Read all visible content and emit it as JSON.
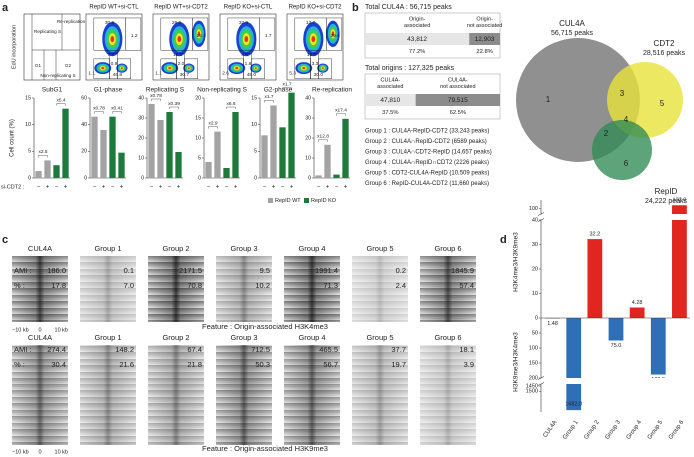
{
  "panel_a": {
    "label": "a",
    "schematic": {
      "y_label": "EdU incorporation",
      "regions": [
        "Replicating S",
        "Re-replication",
        "G1",
        "G2",
        "Non-replicating S"
      ]
    },
    "flow_plots": [
      {
        "title": "RepID WT+si-CTL",
        "gates": [
          "30.9",
          "1.2",
          "7.3",
          "0.9",
          "46.8",
          "1.1"
        ]
      },
      {
        "title": "RepID WT+si-CDT2",
        "gates": [
          "29.9",
          "15.3",
          "12.1",
          "2.0",
          "30.7",
          "1.1"
        ]
      },
      {
        "title": "RepID KO+si-CTL",
        "gates": [
          "32.9",
          "1.7",
          "9.8",
          "1.8",
          "48.0",
          "2.6"
        ]
      },
      {
        "title": "RepID KO+si-CDT2",
        "gates": [
          "12.7",
          "29.6",
          "16.9",
          "3.3",
          "30.0",
          "5.3"
        ]
      }
    ],
    "x_label": "si-CDT2 :",
    "legend": [
      {
        "name": "RepID WT",
        "color": "#a3a3a3"
      },
      {
        "name": "RepID KO",
        "color": "#1d7a3b"
      }
    ]
  },
  "chart_data": [
    {
      "type": "bar",
      "title": "SubG1",
      "y_label": "Cell count (%)",
      "categories": [
        "−",
        "+",
        "−",
        "+"
      ],
      "values": [
        1.3,
        3.3,
        2.4,
        13
      ],
      "ylim": [
        0,
        15
      ],
      "yticks": [
        0,
        5,
        10,
        15
      ],
      "annotations": [
        "x2.5",
        "x5.4"
      ]
    },
    {
      "type": "bar",
      "title": "G1-phase",
      "categories": [
        "−",
        "+",
        "−",
        "+"
      ],
      "values": [
        46,
        36,
        46,
        19
      ],
      "ylim": [
        0,
        60
      ],
      "yticks": [
        0,
        20,
        40,
        60
      ],
      "annotations": [
        "x0.78",
        "x0.41"
      ]
    },
    {
      "type": "bar",
      "title": "Replicating S",
      "categories": [
        "−",
        "+",
        "−",
        "+"
      ],
      "values": [
        37,
        29,
        33,
        13
      ],
      "ylim": [
        0,
        40
      ],
      "yticks": [
        0,
        10,
        20,
        30,
        40
      ],
      "annotations": [
        "x0.78",
        "x0.39"
      ]
    },
    {
      "type": "bar",
      "title": "Non-replicating S",
      "categories": [
        "−",
        "+",
        "−",
        "+"
      ],
      "values": [
        4,
        11.6,
        2.5,
        16.5
      ],
      "ylim": [
        0,
        20
      ],
      "yticks": [
        0,
        5,
        10,
        15,
        20
      ],
      "annotations": [
        "x2.9",
        "x6.6"
      ]
    },
    {
      "type": "bar",
      "title": "G2-phase",
      "categories": [
        "−",
        "+",
        "−",
        "+"
      ],
      "values": [
        8,
        13.6,
        9.5,
        16
      ],
      "ylim": [
        0,
        15
      ],
      "yticks": [
        0,
        5,
        10,
        15
      ],
      "annotations": [
        "x1.7",
        "x1.7"
      ]
    },
    {
      "type": "bar",
      "title": "Re-replication",
      "categories": [
        "−",
        "+",
        "−",
        "+"
      ],
      "values": [
        1.3,
        16.6,
        1.7,
        29.6
      ],
      "ylim": [
        0,
        40
      ],
      "yticks": [
        0,
        10,
        20,
        30,
        40
      ],
      "annotations": [
        "x12.8",
        "x17.4"
      ]
    },
    {
      "type": "broken-bar",
      "categories": [
        "CUL4A",
        "Group 1",
        "Group 2",
        "Group 3",
        "Group 4",
        "Group 5",
        "Group 6"
      ],
      "series": [
        {
          "name": "H3K4me3/H3K9me3",
          "color": "#e0261e",
          "values": [
            null,
            null,
            32.2,
            null,
            4.28,
            null,
            102.0
          ],
          "value_labels": [
            null,
            null,
            "32.2",
            null,
            "4.28",
            null,
            "102.0"
          ]
        },
        {
          "name": "H3K9me3/H3K4me3",
          "color": "#2e6fb7",
          "values": [
            1.48,
            1682.0,
            null,
            75.0,
            null,
            188.5,
            null
          ],
          "value_labels": [
            "1.48",
            "1682.0",
            null,
            "75.0",
            null,
            "188.5",
            null
          ]
        }
      ],
      "upper_segments": [
        {
          "ylim": [
            0,
            40
          ],
          "yticks": [
            0,
            10,
            20,
            30,
            40
          ]
        },
        {
          "ylim": [
            97,
            105
          ],
          "yticks": [
            100
          ]
        }
      ],
      "lower_segments": [
        {
          "ylim": [
            0,
            200
          ],
          "yticks": [
            50,
            100,
            150,
            200
          ]
        },
        {
          "ylim": [
            1430,
            1700
          ],
          "yticks": [
            1450,
            1500
          ]
        }
      ]
    }
  ],
  "panel_b": {
    "label": "b",
    "summaries": [
      {
        "title": "Total CUL4A : 56,715 peaks",
        "segments": [
          {
            "header": [
              "Origin-",
              "associated"
            ],
            "count": {
              "value": 43812,
              "label": "43,812"
            },
            "percent": {
              "value": 77.2,
              "label": "77.2%"
            }
          },
          {
            "header": [
              "Origin-",
              "not associated"
            ],
            "count": {
              "value": 12903,
              "label": "12,903"
            },
            "percent": {
              "value": 22.8,
              "label": "22.8%"
            }
          }
        ]
      },
      {
        "title": "Total origins : 127,325 peaks",
        "segments": [
          {
            "header": [
              "CUL4A-",
              "associated"
            ],
            "count": {
              "value": 47810,
              "label": "47,810"
            },
            "percent": {
              "value": 37.5,
              "label": "37.5%"
            }
          },
          {
            "header": [
              "CUL4A-",
              "not associated"
            ],
            "count": {
              "value": 79515,
              "label": "79,515"
            },
            "percent": {
              "value": 62.5,
              "label": "62.5%"
            }
          }
        ]
      }
    ],
    "groups": [
      "Group 1 : CUL4A-RepID-CDT2 (33,243 peaks)",
      "Group 2 : CUL4A∩RepID-CDT2 (6589 peaks)",
      "Group 3 : CUL4A∩CDT2-RepID (14,657 peaks)",
      "Group 4 : CUL4A∩RepID∩CDT2 (2226 peaks)",
      "Group 5 : CDT2-CUL4A-RepID (10,509 peaks)",
      "Group 6 : RepID-CUL4A-CDT2 (11,660 peaks)"
    ],
    "venn": {
      "sets": [
        {
          "name": "CUL4A",
          "peaks": "56,715 peaks"
        },
        {
          "name": "CDT2",
          "peaks": "28,516 peaks"
        },
        {
          "name": "RepID",
          "peaks": "24,222 peaks"
        }
      ],
      "regions": [
        "1",
        "2",
        "3",
        "4",
        "5",
        "6"
      ]
    }
  },
  "panel_c": {
    "label": "c",
    "columns": [
      "CUL4A",
      "Group 1",
      "Group 2",
      "Group 3",
      "Group 4",
      "Group 5",
      "Group 6"
    ],
    "ami_label": "AMI :",
    "pct_label": "% :",
    "axis": [
      "−10 kb",
      "0",
      "10 kb"
    ],
    "rows": [
      {
        "feature": "Feature : Origin-associated H3K4me3",
        "ami": [
          "186.0",
          "0.1",
          "2171.5",
          "9.5",
          "1991.4",
          "0.2",
          "1845.9"
        ],
        "pct": [
          "17.8",
          "7.0",
          "70.8",
          "10.2",
          "71.3",
          "2.4",
          "57.4"
        ]
      },
      {
        "feature": "Feature : Origin-associated H3K9me3",
        "ami": [
          "274.4",
          "148.2",
          "67.4",
          "712.5",
          "465.5",
          "37.7",
          "18.1"
        ],
        "pct": [
          "30.4",
          "21.6",
          "21.8",
          "50.3",
          "56.7",
          "19.7",
          "3.9"
        ]
      }
    ]
  },
  "panel_d": {
    "label": "d"
  }
}
